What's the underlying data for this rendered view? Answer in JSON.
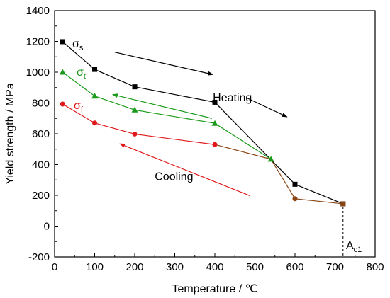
{
  "chart_data": {
    "type": "line",
    "xlabel": "Temperature / ℃",
    "ylabel": "Yield strength / MPa",
    "xlim": [
      0,
      800
    ],
    "ylim": [
      -200,
      1400
    ],
    "xticks": [
      0,
      100,
      200,
      300,
      400,
      500,
      600,
      700,
      800
    ],
    "yticks": [
      -200,
      0,
      200,
      400,
      600,
      800,
      1000,
      1200,
      1400
    ],
    "xtick_labels": [
      "0",
      "100",
      "200",
      "300",
      "400",
      "500",
      "600",
      "700",
      "800"
    ],
    "ytick_labels": [
      "-200",
      "0",
      "200",
      "400",
      "600",
      "800",
      "1000",
      "1200",
      "1400"
    ],
    "grid": false,
    "legend": "none",
    "series": [
      {
        "name": "σs",
        "name_main": "σ",
        "name_sub": "s",
        "color": "#000000",
        "marker": "square",
        "x": [
          20,
          100,
          200,
          400,
          600,
          720
        ],
        "y": [
          1198,
          1018,
          905,
          805,
          272,
          145
        ]
      },
      {
        "name": "σt",
        "name_main": "σ",
        "name_sub": "t",
        "color": "#1a9a1a",
        "marker": "triangle",
        "x": [
          20,
          100,
          200,
          400,
          540
        ],
        "y": [
          1000,
          845,
          755,
          668,
          435
        ]
      },
      {
        "name": "σf",
        "name_main": "σ",
        "name_sub": "f",
        "color": "#e0191b",
        "marker": "circle",
        "x": [
          20,
          100,
          200,
          400
        ],
        "y": [
          793,
          670,
          598,
          530
        ]
      }
    ],
    "connectors": [
      {
        "color": "#8b4513",
        "x": [
          400,
          540,
          600,
          720
        ],
        "y": [
          530,
          435,
          178,
          145
        ],
        "markers": [
          {
            "x": 600,
            "y": 178
          }
        ]
      }
    ],
    "end_marker": {
      "x": 720,
      "y": 145,
      "color": "#8b4513"
    },
    "annotations": [
      {
        "text": "Heating",
        "x": 395,
        "y": 812
      },
      {
        "text": "Cooling",
        "x": 250,
        "y": 300
      }
    ],
    "reference_line": {
      "label_main": "A",
      "label_sub": "c1",
      "x": 720,
      "y_from": 145,
      "y_to": -200
    },
    "arrows": [
      {
        "color": "#000000",
        "from": [
          150,
          1130
        ],
        "to": [
          395,
          985
        ]
      },
      {
        "color": "#000000",
        "from": [
          478,
          835
        ],
        "to": [
          580,
          710
        ]
      },
      {
        "color": "#1a9a1a",
        "from": [
          393,
          700
        ],
        "to": [
          145,
          855
        ]
      },
      {
        "color": "#e0191b",
        "from": [
          487,
          198
        ],
        "to": [
          163,
          535
        ]
      }
    ]
  }
}
